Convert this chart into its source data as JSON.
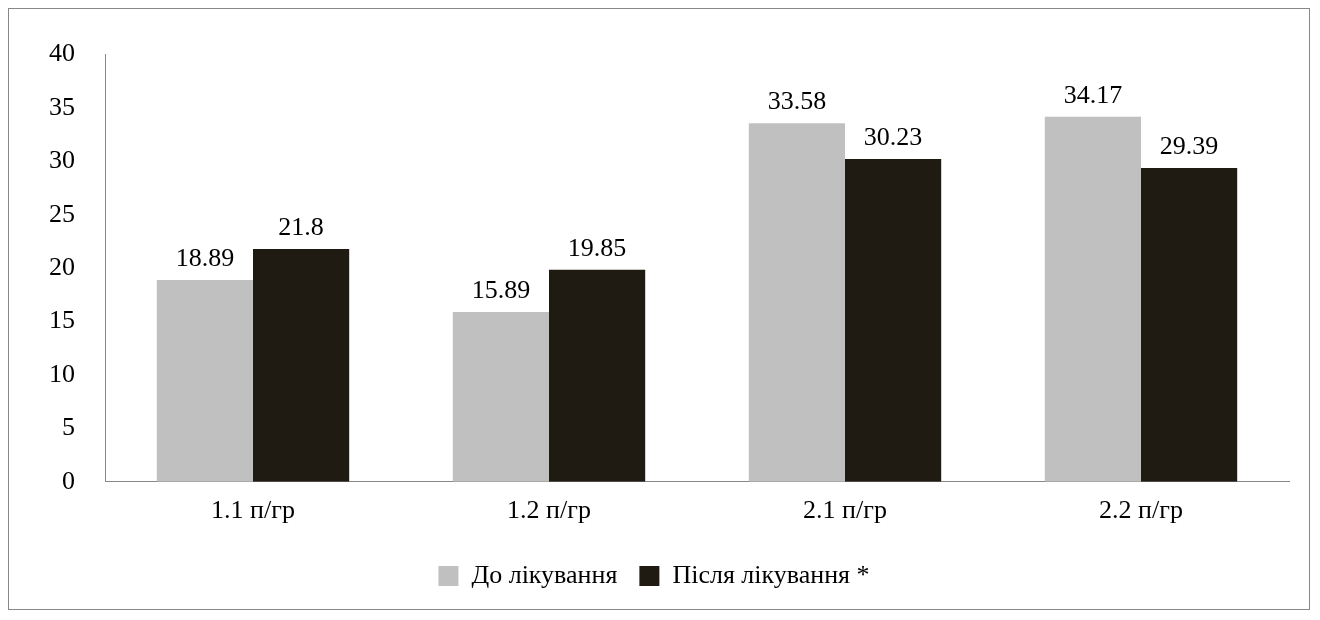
{
  "chart_data": {
    "type": "bar",
    "categories": [
      "1.1 п/гр",
      "1.2 п/гр",
      "2.1 п/гр",
      "2.2 п/гр"
    ],
    "series": [
      {
        "name": "До лікування",
        "color": "#c0c0c0",
        "values": [
          18.89,
          15.89,
          33.58,
          34.17
        ]
      },
      {
        "name": "Після лікування *",
        "color": "#1f1a12",
        "values": [
          21.8,
          19.85,
          30.23,
          29.39
        ]
      }
    ],
    "ylim": [
      0,
      40
    ],
    "yticks": [
      0,
      5,
      10,
      15,
      20,
      25,
      30,
      35,
      40
    ],
    "grid": false,
    "legend": "bottom",
    "data_labels": true
  }
}
